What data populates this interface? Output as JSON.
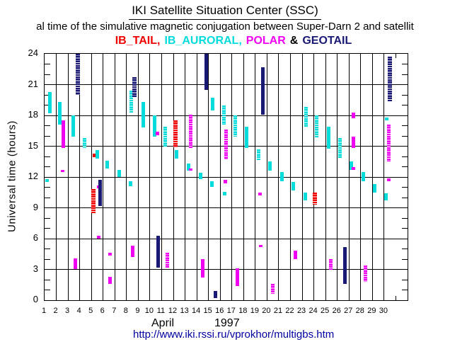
{
  "header": {
    "title": "IKI Satellite Situation Center (SSC)",
    "subtitle": "al time of the simulative magnetic conjugation between Super-Darn 2 and satellit",
    "legend_items": [
      {
        "text": "IB_TAIL,",
        "color": "#f00000"
      },
      {
        "text": "IB_AURORAL,",
        "color": "#00dcdc"
      },
      {
        "text": "POLAR",
        "color": "#f000f0"
      },
      {
        "text": "&",
        "color": "#000000"
      },
      {
        "text": "GEOTAIL",
        "color": "#191975"
      }
    ]
  },
  "y_axis": {
    "title": "Universal time (hours)",
    "tick_labels": [
      "0",
      "3",
      "6",
      "9",
      "12",
      "15",
      "18",
      "21",
      "24"
    ],
    "minor_tick_every_hours": 1
  },
  "x_axis": {
    "day_labels": [
      "1",
      "2",
      "3",
      "4",
      "5",
      "6",
      "7",
      "8",
      "9",
      "10",
      "11",
      "12",
      "13",
      "14",
      "15",
      "16",
      "17",
      "18",
      "19",
      "20",
      "21",
      "22",
      "23",
      "24",
      "25",
      "26",
      "27",
      "28",
      "29",
      "30"
    ],
    "month": "April",
    "year": "1997"
  },
  "footer": {
    "url": "http://www.iki.rssi.ru/vprokhor/multigbs.htm"
  },
  "chart_data": {
    "type": "scatter",
    "title": "IKI Satellite Situation Center (SSC)",
    "xlabel": "April 1997 (day of month)",
    "ylabel": "Universal time (hours)",
    "ylim": [
      0,
      24
    ],
    "x_range_days": [
      1,
      31
    ],
    "grid": "vertical line per day, horizontal line every 3 hours",
    "legend_position": "top",
    "note": "each mark is a vertical bar: day column, f = horizontal offset fraction in column, a/b = UT hour range",
    "series": [
      {
        "name": "IB_TAIL",
        "color": "#f00000",
        "marks": [
          {
            "d": 5,
            "f": 0.29,
            "a": 13.9,
            "b": 14.3
          },
          {
            "d": 5,
            "f": 0.19,
            "a": 8.5,
            "b": 10.8,
            "dot": 1,
            "w": 6
          },
          {
            "d": 12,
            "f": 0.18,
            "a": 14.9,
            "b": 17.5,
            "dot": 1,
            "w": 6
          },
          {
            "d": 24,
            "f": 0.06,
            "a": 9.3,
            "b": 10.5,
            "dot": 1,
            "w": 6
          }
        ]
      },
      {
        "name": "IB_AURORAL",
        "color": "#00dcdc",
        "marks": [
          {
            "d": 1,
            "f": 0.44,
            "a": 18.2,
            "b": 20.3
          },
          {
            "d": 1,
            "f": 0.24,
            "a": 11.5,
            "b": 11.8
          },
          {
            "d": 2,
            "f": 0.27,
            "a": 17.1,
            "b": 19.3
          },
          {
            "d": 3,
            "f": 0.43,
            "a": 15.9,
            "b": 18.0
          },
          {
            "d": 4,
            "f": 0.43,
            "a": 14.8,
            "b": 15.8,
            "dot": 1
          },
          {
            "d": 5,
            "f": 0.49,
            "a": 13.8,
            "b": 14.6
          },
          {
            "d": 6,
            "f": 0.37,
            "a": 12.8,
            "b": 13.6
          },
          {
            "d": 7,
            "f": 0.37,
            "a": 12.0,
            "b": 12.7
          },
          {
            "d": 8,
            "f": 0.39,
            "a": 18.2,
            "b": 20.4,
            "dot": 1
          },
          {
            "d": 8,
            "f": 0.37,
            "a": 11.1,
            "b": 11.6
          },
          {
            "d": 9,
            "f": 0.4,
            "a": 16.8,
            "b": 19.3
          },
          {
            "d": 10,
            "f": 0.41,
            "a": 15.9,
            "b": 18.0
          },
          {
            "d": 11,
            "f": 0.32,
            "a": 14.9,
            "b": 16.9,
            "dot": 1
          },
          {
            "d": 12,
            "f": 0.3,
            "a": 13.8,
            "b": 14.6
          },
          {
            "d": 13,
            "f": 0.32,
            "a": 12.6,
            "b": 13.3
          },
          {
            "d": 14,
            "f": 0.31,
            "a": 11.8,
            "b": 12.4
          },
          {
            "d": 15,
            "f": 0.33,
            "a": 18.5,
            "b": 19.7
          },
          {
            "d": 15,
            "f": 0.31,
            "a": 11.0,
            "b": 11.6
          },
          {
            "d": 16,
            "f": 0.3,
            "a": 17.1,
            "b": 19.0,
            "dot": 1
          },
          {
            "d": 16,
            "f": 0.38,
            "a": 10.2,
            "b": 10.55
          },
          {
            "d": 17,
            "f": 0.28,
            "a": 15.9,
            "b": 18.0,
            "dot": 1
          },
          {
            "d": 18,
            "f": 0.26,
            "a": 14.8,
            "b": 16.9
          },
          {
            "d": 19,
            "f": 0.27,
            "a": 13.6,
            "b": 14.7,
            "dot": 1
          },
          {
            "d": 20,
            "f": 0.26,
            "a": 12.6,
            "b": 13.5
          },
          {
            "d": 21,
            "f": 0.26,
            "a": 11.6,
            "b": 12.5
          },
          {
            "d": 22,
            "f": 0.27,
            "a": 10.7,
            "b": 11.5
          },
          {
            "d": 23,
            "f": 0.3,
            "a": 16.9,
            "b": 18.8,
            "dot": 1
          },
          {
            "d": 23,
            "f": 0.28,
            "a": 9.7,
            "b": 10.5
          },
          {
            "d": 24,
            "f": 0.24,
            "a": 15.8,
            "b": 18.0,
            "dot": 1
          },
          {
            "d": 25,
            "f": 0.28,
            "a": 14.75,
            "b": 16.9
          },
          {
            "d": 26,
            "f": 0.21,
            "a": 13.8,
            "b": 15.8,
            "dot": 1
          },
          {
            "d": 27,
            "f": 0.22,
            "a": 12.7,
            "b": 13.5
          },
          {
            "d": 28,
            "f": 0.25,
            "a": 11.6,
            "b": 12.45
          },
          {
            "d": 29,
            "f": 0.21,
            "a": 10.5,
            "b": 11.3
          },
          {
            "d": 30,
            "f": 0.23,
            "a": 17.5,
            "b": 17.8
          },
          {
            "d": 30,
            "f": 0.14,
            "a": 9.7,
            "b": 10.4
          }
        ]
      },
      {
        "name": "POLAR",
        "color": "#f000f0",
        "marks": [
          {
            "d": 2,
            "f": 0.62,
            "a": 14.8,
            "b": 17.5
          },
          {
            "d": 2,
            "f": 0.57,
            "a": 12.5,
            "b": 12.7
          },
          {
            "d": 3,
            "f": 0.61,
            "a": 3.0,
            "b": 4.1
          },
          {
            "d": 5,
            "f": 0.63,
            "a": 10.9,
            "b": 11.2
          },
          {
            "d": 5,
            "f": 0.61,
            "a": 6.0,
            "b": 6.3
          },
          {
            "d": 6,
            "f": 0.6,
            "a": 4.35,
            "b": 4.6
          },
          {
            "d": 6,
            "f": 0.57,
            "a": 1.6,
            "b": 2.3
          },
          {
            "d": 8,
            "f": 0.55,
            "a": 4.2,
            "b": 5.3
          },
          {
            "d": 10,
            "f": 0.61,
            "a": 16.1,
            "b": 16.4
          },
          {
            "d": 11,
            "f": 0.47,
            "a": 3.2,
            "b": 4.6,
            "dot": 1
          },
          {
            "d": 13,
            "f": 0.47,
            "a": 14.8,
            "b": 18.1,
            "dot": 1
          },
          {
            "d": 13,
            "f": 0.49,
            "a": 12.6,
            "b": 12.8
          },
          {
            "d": 14,
            "f": 0.52,
            "a": 2.2,
            "b": 4.0
          },
          {
            "d": 16,
            "f": 0.48,
            "a": 13.7,
            "b": 16.6,
            "dot": 1
          },
          {
            "d": 16,
            "f": 0.45,
            "a": 11.35,
            "b": 11.7
          },
          {
            "d": 17,
            "f": 0.48,
            "a": 1.4,
            "b": 3.1
          },
          {
            "d": 19,
            "f": 0.43,
            "a": 10.2,
            "b": 10.5
          },
          {
            "d": 19,
            "f": 0.47,
            "a": 5.15,
            "b": 5.4
          },
          {
            "d": 20,
            "f": 0.47,
            "a": 0.6,
            "b": 1.6,
            "dot": 1
          },
          {
            "d": 22,
            "f": 0.45,
            "a": 4.0,
            "b": 4.8
          },
          {
            "d": 25,
            "f": 0.46,
            "a": 2.9,
            "b": 4.0,
            "dot": 1
          },
          {
            "d": 27,
            "f": 0.39,
            "a": 17.7,
            "b": 18.3
          },
          {
            "d": 27,
            "f": 0.39,
            "a": 14.8,
            "b": 15.9
          },
          {
            "d": 27,
            "f": 0.4,
            "a": 12.7,
            "b": 13.0
          },
          {
            "d": 28,
            "f": 0.42,
            "a": 1.8,
            "b": 3.4,
            "dot": 1
          },
          {
            "d": 30,
            "f": 0.38,
            "a": 13.5,
            "b": 17.1,
            "dot": 1
          },
          {
            "d": 30,
            "f": 0.38,
            "a": 11.6,
            "b": 11.85
          }
        ]
      },
      {
        "name": "GEOTAIL",
        "color": "#191975",
        "marks": [
          {
            "d": 3,
            "f": 0.83,
            "a": 20.0,
            "b": 24.0,
            "dot": 1,
            "w": 6
          },
          {
            "d": 5,
            "f": 0.77,
            "a": 9.2,
            "b": 11.7
          },
          {
            "d": 8,
            "f": 0.69,
            "a": 19.7,
            "b": 21.7,
            "dot": 1,
            "w": 6
          },
          {
            "d": 10,
            "f": 0.68,
            "a": 3.2,
            "b": 6.3
          },
          {
            "d": 14,
            "f": 0.78,
            "a": 20.5,
            "b": 24.0
          },
          {
            "d": 15,
            "f": 0.58,
            "a": 0.2,
            "b": 0.9
          },
          {
            "d": 19,
            "f": 0.65,
            "a": 18.1,
            "b": 22.7
          },
          {
            "d": 26,
            "f": 0.64,
            "a": 1.6,
            "b": 5.2
          },
          {
            "d": 30,
            "f": 0.49,
            "a": 19.3,
            "b": 23.7,
            "dot": 1,
            "w": 6
          }
        ]
      }
    ]
  }
}
